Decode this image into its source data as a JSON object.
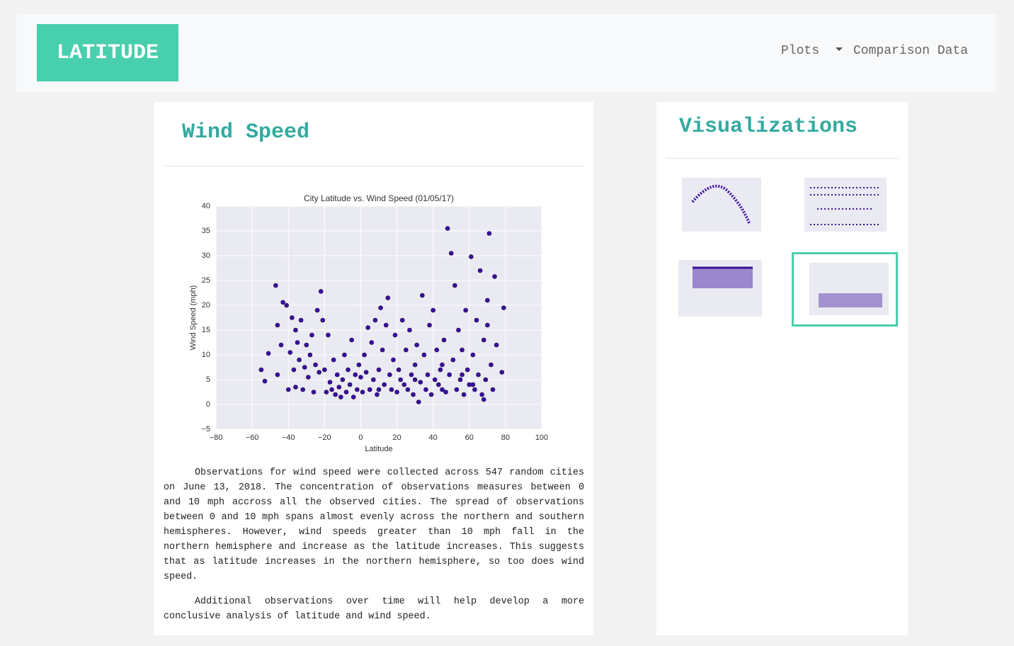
{
  "navbar": {
    "brand": "LATITUDE",
    "links": [
      "Plots",
      "Comparison Data"
    ]
  },
  "main": {
    "heading": "Wind Speed",
    "chart_data": {
      "type": "scatter",
      "title": "City Latitude vs. Wind Speed (01/05/17)",
      "x_label": "Latitude",
      "y_label": "Wind Speed (mph)",
      "xlim": [
        -80,
        100
      ],
      "ylim": [
        -5,
        40
      ],
      "xticks": [
        {
          "value": -80,
          "label": "−80"
        },
        {
          "value": -60,
          "label": "−60"
        },
        {
          "value": -40,
          "label": "−40"
        },
        {
          "value": -20,
          "label": "−20"
        },
        0,
        20,
        40,
        60,
        80,
        100
      ],
      "yticks": [
        {
          "value": -5,
          "label": "−5"
        },
        0,
        5,
        10,
        15,
        20,
        25,
        30,
        35,
        40
      ],
      "grid": true,
      "color": "#3b0f9e",
      "x": [
        -55,
        -53,
        -51,
        -47,
        -46,
        -46,
        -44,
        -43,
        -41,
        -40,
        -39,
        -38,
        -37,
        -36,
        -36,
        -35,
        -34,
        -33,
        -32,
        -31,
        -30,
        -29,
        -28,
        -27,
        -26,
        -25,
        -24,
        -23,
        -22,
        -21,
        -20,
        -19,
        -18,
        -17,
        -16,
        -14,
        -13,
        -12,
        -11,
        -10,
        -9,
        -8,
        -7,
        -6,
        -5,
        -4,
        -3,
        -2,
        -1,
        0,
        1,
        2,
        3,
        4,
        5,
        6,
        7,
        8,
        9,
        10,
        11,
        12,
        13,
        14,
        15,
        16,
        17,
        18,
        19,
        20,
        21,
        22,
        23,
        24,
        25,
        26,
        27,
        28,
        29,
        30,
        31,
        32,
        33,
        34,
        35,
        36,
        37,
        38,
        39,
        40,
        41,
        42,
        43,
        44,
        45,
        46,
        47,
        48,
        49,
        50,
        51,
        52,
        53,
        54,
        55,
        56,
        57,
        58,
        59,
        60,
        61,
        62,
        63,
        64,
        65,
        66,
        67,
        68,
        69,
        70,
        71,
        72,
        73,
        74,
        75,
        78,
        79,
        62,
        56,
        45,
        30,
        10,
        -15,
        68,
        70
      ],
      "values": [
        7,
        4.7,
        10.3,
        24,
        6,
        16,
        12,
        20.6,
        20,
        3,
        10.5,
        17.5,
        7,
        15,
        3.5,
        12.5,
        9,
        17,
        3,
        7.5,
        12,
        5.5,
        10,
        14,
        2.5,
        8,
        19,
        6.5,
        22.8,
        17,
        7,
        2.5,
        14,
        4.5,
        3,
        2,
        6,
        3.5,
        1.5,
        5,
        10,
        2.5,
        7,
        4,
        13,
        1.5,
        6,
        3,
        8,
        5.5,
        2.5,
        10,
        6.5,
        15.5,
        3,
        12.5,
        5,
        17,
        2,
        7,
        19.5,
        11,
        4,
        16,
        21.5,
        6,
        3,
        9,
        14,
        2.5,
        7,
        5,
        17,
        4,
        11,
        3,
        15,
        6,
        2,
        8,
        12,
        0.5,
        4.5,
        22,
        10,
        3,
        6,
        16,
        2,
        19,
        5,
        11,
        4,
        7,
        3,
        13,
        2.5,
        35.5,
        6,
        30.5,
        9,
        24,
        3,
        15,
        5,
        11,
        2,
        19,
        7,
        4,
        29.8,
        10,
        3,
        17,
        6,
        27,
        2,
        13,
        5,
        21,
        34.5,
        8,
        3,
        25.8,
        12,
        6.5,
        19.5,
        4,
        6,
        8,
        5,
        3,
        9,
        1,
        16
      ]
    }
  },
  "paragraphs": [
    "Observations for wind speed were collected across 547 random cities on June 13, 2018. The concentration of observations measures between 0 and 10 mph accross all the observed cities. The spread of observations between 0 and 10 mph spans almost evenly across the northern and southern hemispheres. However, wind speeds greater than 10 mph fall in the northern hemisphere and increase as the latitude increases. This suggests that as latitude increases in the northern hemisphere, so too does wind speed.",
    "Additional observations over time will help develop a more conclusive analysis of latitude and wind speed."
  ],
  "sidebar": {
    "heading": "Visualizations"
  }
}
